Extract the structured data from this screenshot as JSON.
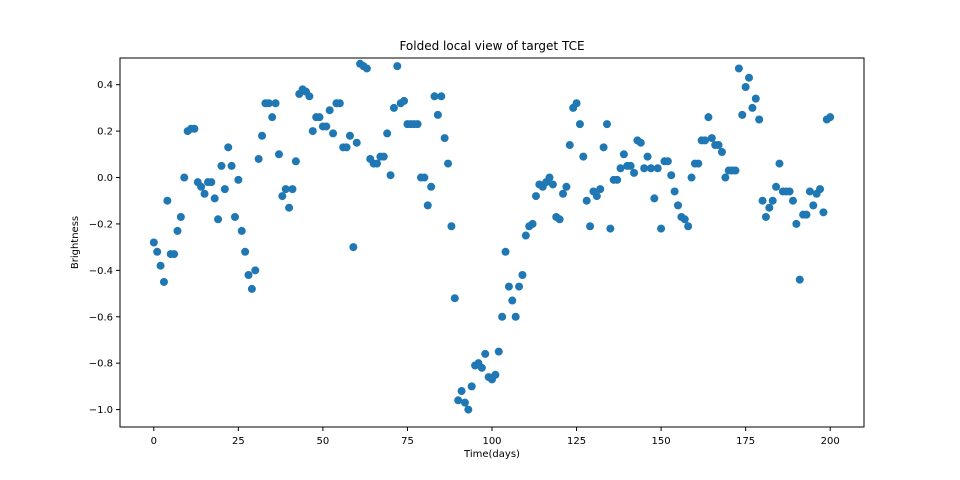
{
  "chart_data": {
    "type": "scatter",
    "title": "Folded local view of target TCE",
    "xlabel": "Time(days)",
    "ylabel": "Brightness",
    "xlim": [
      -10,
      210
    ],
    "ylim": [
      -1.075,
      0.515
    ],
    "xticks": [
      0,
      25,
      50,
      75,
      100,
      125,
      150,
      175,
      200
    ],
    "xtick_labels": [
      "0",
      "25",
      "50",
      "75",
      "100",
      "125",
      "150",
      "175",
      "200"
    ],
    "yticks": [
      -1.0,
      -0.8,
      -0.6,
      -0.4,
      -0.2,
      0.0,
      0.2,
      0.4
    ],
    "ytick_labels": [
      "−1.0",
      "−0.8",
      "−0.6",
      "−0.4",
      "−0.2",
      "0.0",
      "0.2",
      "0.4"
    ],
    "grid": false,
    "marker_color": "#1f77b4",
    "series": [
      {
        "x": [
          0,
          1,
          2,
          3,
          4,
          5,
          6,
          7,
          8,
          9,
          10,
          11,
          12,
          13,
          14,
          15,
          16,
          17,
          18,
          19,
          20,
          21,
          22,
          23,
          24,
          25,
          26,
          27,
          28,
          29,
          30,
          31,
          32,
          33,
          34,
          35,
          36,
          37,
          38,
          39,
          40,
          41,
          42,
          43,
          44,
          45,
          46,
          47,
          48,
          49,
          50,
          51,
          52,
          53,
          54,
          55,
          56,
          57,
          58,
          59,
          60,
          61,
          62,
          63,
          64,
          65,
          66,
          67,
          68,
          69,
          70,
          71,
          72,
          73,
          74,
          75,
          76,
          77,
          78,
          79,
          80,
          81,
          82,
          83,
          84,
          85,
          86,
          87,
          88,
          89,
          90,
          91,
          92,
          93,
          94,
          95,
          96,
          97,
          98,
          99,
          100,
          101,
          102,
          103,
          104,
          105,
          106,
          107,
          108,
          109,
          110,
          111,
          112,
          113,
          114,
          115,
          116,
          117,
          118,
          119,
          120,
          121,
          122,
          123,
          124,
          125,
          126,
          127,
          128,
          129,
          130,
          131,
          132,
          133,
          134,
          135,
          136,
          137,
          138,
          139,
          140,
          141,
          142,
          143,
          144,
          145,
          146,
          147,
          148,
          149,
          150,
          151,
          152,
          153,
          154,
          155,
          156,
          157,
          158,
          159,
          160,
          161,
          162,
          163,
          164,
          165,
          166,
          167,
          168,
          169,
          170,
          171,
          172,
          173,
          174,
          175,
          176,
          177,
          178,
          179,
          180,
          181,
          182,
          183,
          184,
          185,
          186,
          187,
          188,
          189,
          190,
          191,
          192,
          193,
          194,
          195,
          196,
          197,
          198,
          199,
          200
        ],
        "y": [
          -0.28,
          -0.32,
          -0.38,
          -0.45,
          -0.1,
          -0.33,
          -0.33,
          -0.23,
          -0.17,
          0.0,
          0.2,
          0.21,
          0.21,
          -0.02,
          -0.04,
          -0.07,
          -0.02,
          -0.02,
          -0.09,
          -0.18,
          0.05,
          -0.05,
          0.13,
          0.05,
          -0.17,
          -0.01,
          -0.23,
          -0.32,
          -0.42,
          -0.48,
          -0.4,
          0.08,
          0.18,
          0.32,
          0.32,
          0.26,
          0.32,
          0.1,
          -0.08,
          -0.05,
          -0.13,
          -0.05,
          0.07,
          0.36,
          0.38,
          0.37,
          0.35,
          0.2,
          0.26,
          0.26,
          0.22,
          0.22,
          0.29,
          0.19,
          0.32,
          0.32,
          0.13,
          0.13,
          0.18,
          -0.3,
          0.15,
          0.49,
          0.48,
          0.47,
          0.08,
          0.06,
          0.06,
          0.09,
          0.09,
          0.19,
          0.01,
          0.3,
          0.48,
          0.32,
          0.33,
          0.23,
          0.23,
          0.23,
          0.23,
          0.0,
          0.0,
          -0.12,
          -0.04,
          0.35,
          0.27,
          0.35,
          0.17,
          0.06,
          -0.21,
          -0.52,
          -0.96,
          -0.92,
          -0.97,
          -1.0,
          -0.9,
          -0.81,
          -0.8,
          -0.82,
          -0.76,
          -0.86,
          -0.87,
          -0.85,
          -0.75,
          -0.6,
          -0.32,
          -0.47,
          -0.53,
          -0.6,
          -0.47,
          -0.42,
          -0.25,
          -0.21,
          -0.2,
          -0.08,
          -0.03,
          -0.04,
          -0.02,
          0.0,
          -0.03,
          -0.17,
          -0.18,
          -0.07,
          -0.04,
          0.14,
          0.3,
          0.32,
          0.23,
          0.09,
          -0.1,
          -0.21,
          -0.06,
          -0.08,
          -0.05,
          0.13,
          0.23,
          -0.22,
          -0.01,
          -0.01,
          0.04,
          0.1,
          0.05,
          0.05,
          0.02,
          0.16,
          0.15,
          0.04,
          0.09,
          0.04,
          -0.09,
          0.04,
          -0.22,
          0.07,
          0.07,
          0.01,
          -0.06,
          -0.12,
          -0.17,
          -0.18,
          -0.21,
          0.0,
          0.06,
          0.06,
          0.16,
          0.16,
          0.26,
          0.17,
          0.14,
          0.14,
          0.11,
          0.0,
          0.03,
          0.03,
          0.03,
          0.47,
          0.27,
          0.39,
          0.43,
          0.3,
          0.34,
          0.25,
          -0.1,
          -0.17,
          -0.13,
          -0.1,
          -0.04,
          0.06,
          -0.06,
          -0.06,
          -0.06,
          -0.1,
          -0.2,
          -0.44,
          -0.16,
          -0.16,
          -0.06,
          -0.12,
          -0.07,
          -0.05,
          -0.15,
          0.25,
          0.26
        ]
      }
    ]
  }
}
